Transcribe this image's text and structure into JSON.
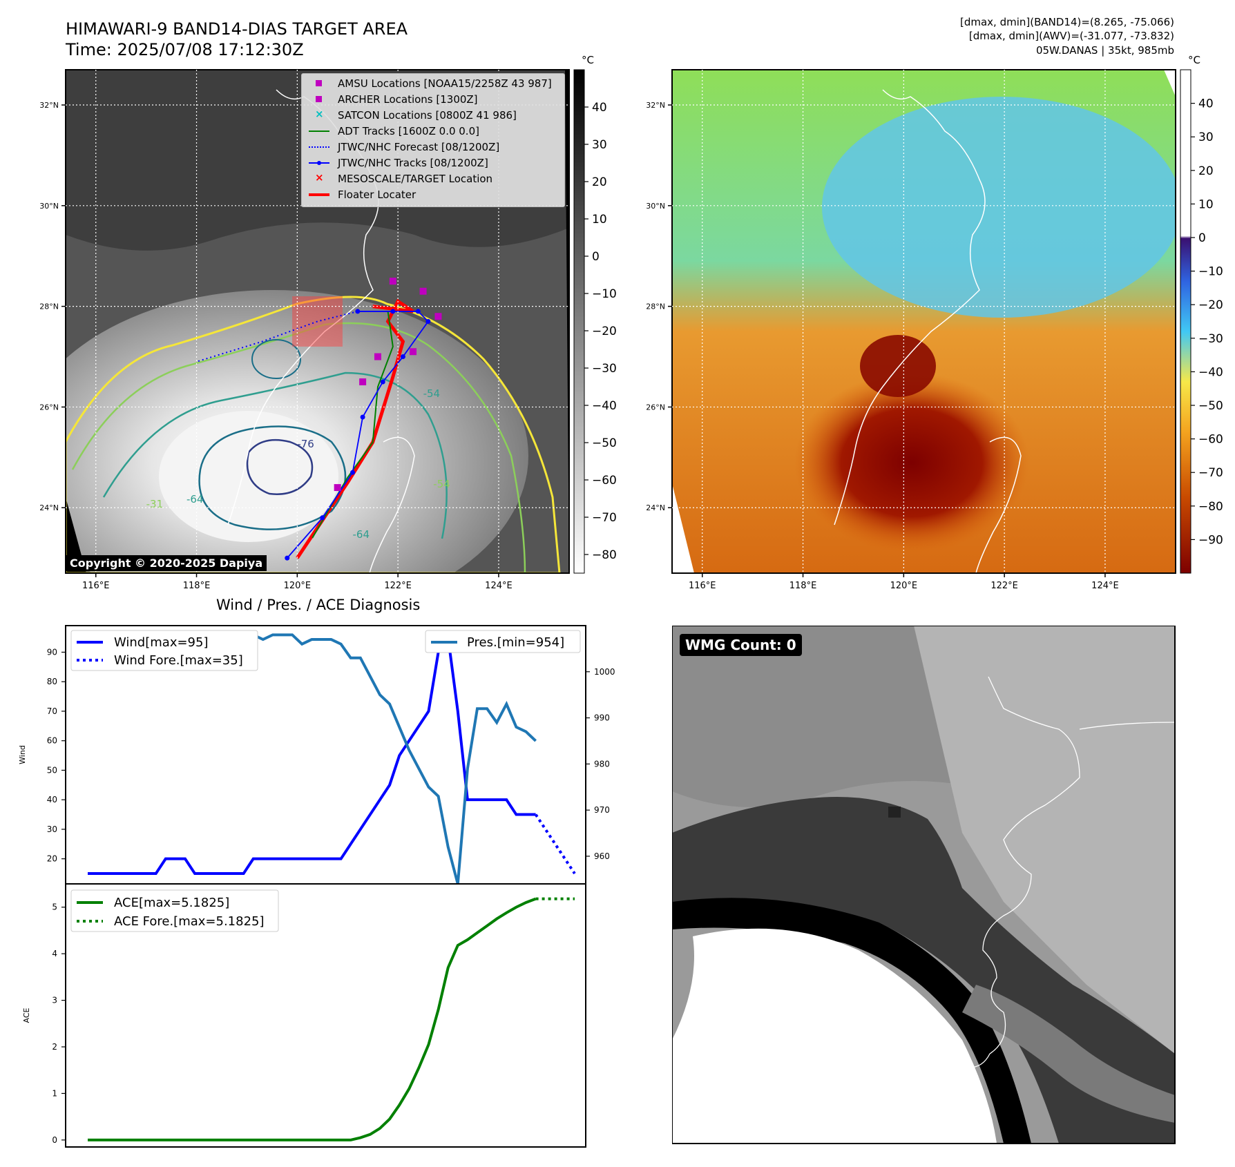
{
  "header": {
    "title_line1": "HIMAWARI-9 BAND14-DIAS TARGET AREA",
    "title_line2": "Time: 2025/07/08 17:12:30Z",
    "info_line1": "[dmax, dmin](BAND14)=(8.265, -75.066)",
    "info_line2": "[dmax, dmin](AWV)=(-31.077, -73.832)",
    "info_line3": "05W.DANAS | 35kt, 985mb"
  },
  "map": {
    "lat_labels": [
      "32°N",
      "30°N",
      "28°N",
      "26°N",
      "24°N"
    ],
    "lon_labels": [
      "116°E",
      "118°E",
      "120°E",
      "122°E",
      "124°E"
    ],
    "lat_values": [
      32,
      30,
      28,
      26,
      24
    ],
    "lon_values": [
      116,
      118,
      120,
      122,
      124
    ],
    "lat_range": [
      22.7,
      32.7
    ],
    "lon_range": [
      115.4,
      125.4
    ],
    "copyright": "Copyright © 2020-2025 Dapiya",
    "contour_labels": [
      "-76",
      "-54",
      "-64",
      "-64",
      "-31",
      "-31",
      "-54"
    ],
    "legend": [
      {
        "label": "AMSU Locations [NOAA15/2258Z 43 987]",
        "color": "#bf00bf",
        "marker": "square"
      },
      {
        "label": "ARCHER Locations [1300Z]",
        "color": "#bf00bf",
        "marker": "square"
      },
      {
        "label": "SATCON Locations [0800Z 41 986]",
        "color": "#00bfbf",
        "marker": "x"
      },
      {
        "label": "ADT Tracks [1600Z 0.0 0.0]",
        "color": "#008000",
        "marker": "line"
      },
      {
        "label": "JTWC/NHC Forecast [08/1200Z]",
        "color": "#0000ff",
        "marker": "dotted"
      },
      {
        "label": "JTWC/NHC Tracks [08/1200Z]",
        "color": "#0000ff",
        "marker": "line-dot"
      },
      {
        "label": "MESOSCALE/TARGET Location",
        "color": "#ff0000",
        "marker": "x"
      },
      {
        "label": "Floater Locater",
        "color": "#ff0000",
        "marker": "thick-line"
      }
    ],
    "jtwc_track": [
      [
        119.8,
        23.0
      ],
      [
        120.5,
        23.8
      ],
      [
        121.1,
        24.7
      ],
      [
        121.3,
        25.8
      ],
      [
        121.7,
        26.5
      ],
      [
        122.1,
        27.0
      ],
      [
        122.6,
        27.7
      ],
      [
        122.4,
        27.9
      ],
      [
        121.9,
        27.9
      ],
      [
        121.2,
        27.9
      ]
    ],
    "jtwc_forecast": [
      [
        121.2,
        27.9
      ],
      [
        120.4,
        27.7
      ],
      [
        119.3,
        27.3
      ],
      [
        118.0,
        26.9
      ]
    ],
    "adt_track": [
      [
        120.3,
        23.4
      ],
      [
        121.0,
        24.6
      ],
      [
        121.5,
        25.3
      ],
      [
        121.6,
        26.4
      ],
      [
        121.9,
        27.2
      ],
      [
        121.8,
        27.9
      ]
    ],
    "archer_points": [
      [
        121.9,
        28.5
      ],
      [
        122.5,
        28.3
      ],
      [
        122.8,
        27.8
      ],
      [
        121.6,
        27.0
      ],
      [
        122.3,
        27.1
      ],
      [
        121.3,
        26.5
      ],
      [
        120.8,
        24.4
      ]
    ],
    "target_box": {
      "lon": [
        119.9,
        120.9
      ],
      "lat": [
        27.2,
        28.2
      ]
    },
    "floater_track": [
      [
        120.0,
        23.0
      ],
      [
        120.6,
        23.9
      ],
      [
        121.0,
        24.5
      ],
      [
        121.5,
        25.3
      ],
      [
        121.9,
        26.6
      ],
      [
        122.1,
        27.3
      ],
      [
        121.8,
        27.7
      ],
      [
        122.0,
        28.1
      ],
      [
        122.3,
        27.9
      ],
      [
        121.5,
        28.0
      ]
    ]
  },
  "colorbar1": {
    "unit": "°C",
    "ticks": [
      "40",
      "30",
      "20",
      "10",
      "0",
      "−10",
      "−20",
      "−30",
      "−40",
      "−50",
      "−60",
      "−70",
      "−80"
    ],
    "tick_values": [
      40,
      30,
      20,
      10,
      0,
      -10,
      -20,
      -30,
      -40,
      -50,
      -60,
      -70,
      -80
    ],
    "range": [
      -85,
      50
    ]
  },
  "colorbar2": {
    "unit": "°C",
    "ticks": [
      "40",
      "30",
      "20",
      "10",
      "0",
      "−10",
      "−20",
      "−30",
      "−40",
      "−50",
      "−60",
      "−70",
      "−80",
      "−90"
    ],
    "tick_values": [
      40,
      30,
      20,
      10,
      0,
      -10,
      -20,
      -30,
      -40,
      -50,
      -60,
      -70,
      -80,
      -90
    ],
    "range": [
      -100,
      50
    ]
  },
  "diagnosis": {
    "title": "Wind / Pres. / ACE Diagnosis",
    "wmg_label": "WMG Count: 0"
  },
  "chart_data": [
    {
      "type": "line",
      "title": "Wind / Pres. / ACE Diagnosis",
      "ylabel": "Wind",
      "ylabel_right": "Pressure",
      "ylim": [
        11.5,
        99
      ],
      "ylim_right": [
        954,
        1010
      ],
      "yticks": [
        20,
        30,
        40,
        50,
        60,
        70,
        80,
        90
      ],
      "yticks_right": [
        960,
        970,
        980,
        990,
        1000
      ],
      "series": [
        {
          "name": "Wind[max=95]",
          "axis": "left",
          "style": "solid",
          "color": "#0000ff",
          "values": [
            15,
            15,
            15,
            15,
            15,
            15,
            15,
            15,
            20,
            20,
            20,
            15,
            15,
            15,
            15,
            15,
            15,
            20,
            20,
            20,
            20,
            20,
            20,
            20,
            20,
            20,
            20,
            25,
            30,
            35,
            40,
            45,
            55,
            60,
            65,
            70,
            90,
            95,
            70,
            40,
            40,
            40,
            40,
            40,
            35,
            35,
            35
          ]
        },
        {
          "name": "Wind Fore.[max=35]",
          "axis": "left",
          "style": "dotted",
          "color": "#0000ff",
          "values": [
            null,
            null,
            null,
            null,
            null,
            null,
            null,
            null,
            null,
            null,
            null,
            null,
            null,
            null,
            null,
            null,
            null,
            null,
            null,
            null,
            null,
            null,
            null,
            null,
            null,
            null,
            null,
            null,
            null,
            null,
            null,
            null,
            null,
            null,
            null,
            null,
            null,
            null,
            null,
            null,
            null,
            null,
            null,
            null,
            null,
            null,
            35,
            30,
            25,
            20,
            15
          ]
        },
        {
          "name": "Pres.[min=954]",
          "axis": "right",
          "style": "solid",
          "color": "#1f77b4",
          "values": [
            1008,
            1008,
            1008,
            1008,
            1008,
            1006,
            1006,
            1006,
            1006,
            1006,
            1006,
            1007,
            1006,
            1007,
            1007,
            1007,
            1008,
            1008,
            1007,
            1008,
            1008,
            1008,
            1006,
            1007,
            1007,
            1007,
            1006,
            1003,
            1003,
            999,
            995,
            993,
            988,
            983,
            979,
            975,
            973,
            962,
            954,
            979,
            992,
            992,
            989,
            993,
            988,
            987,
            985
          ]
        }
      ]
    },
    {
      "type": "line",
      "ylabel": "ACE",
      "ylim": [
        -0.15,
        5.5
      ],
      "yticks": [
        0,
        1,
        2,
        3,
        4,
        5
      ],
      "series": [
        {
          "name": "ACE[max=5.1825]",
          "style": "solid",
          "color": "#008000",
          "values": [
            0,
            0,
            0,
            0,
            0,
            0,
            0,
            0,
            0,
            0,
            0,
            0,
            0,
            0,
            0,
            0,
            0,
            0,
            0,
            0,
            0,
            0,
            0,
            0,
            0,
            0,
            0,
            0,
            0.05,
            0.12,
            0.25,
            0.45,
            0.75,
            1.1,
            1.55,
            2.05,
            2.8,
            3.7,
            4.18,
            4.3,
            4.45,
            4.6,
            4.75,
            4.88,
            5.0,
            5.1,
            5.18
          ]
        },
        {
          "name": "ACE Fore.[max=5.1825]",
          "style": "dotted",
          "color": "#008000",
          "values": [
            null,
            null,
            null,
            null,
            null,
            null,
            null,
            null,
            null,
            null,
            null,
            null,
            null,
            null,
            null,
            null,
            null,
            null,
            null,
            null,
            null,
            null,
            null,
            null,
            null,
            null,
            null,
            null,
            null,
            null,
            null,
            null,
            null,
            null,
            null,
            null,
            null,
            null,
            null,
            null,
            null,
            null,
            null,
            null,
            null,
            null,
            5.18,
            5.18,
            5.18,
            5.18,
            5.18
          ]
        }
      ]
    }
  ]
}
